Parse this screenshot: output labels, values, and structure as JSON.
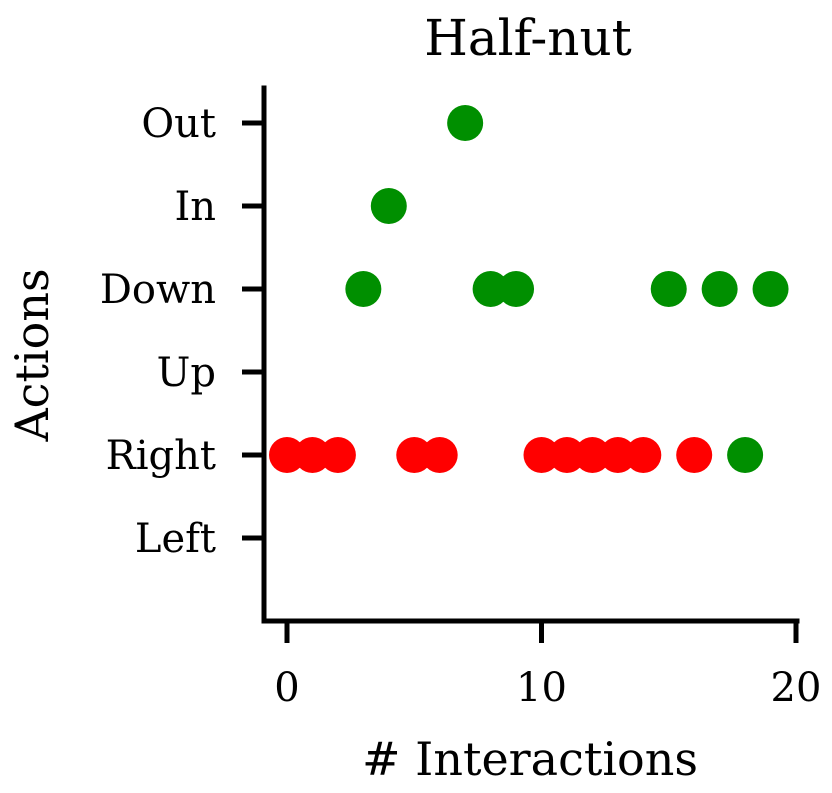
{
  "chart_data": {
    "type": "scatter",
    "title": "Half-nut",
    "xlabel": "# Interactions",
    "ylabel": "Actions",
    "xlim": [
      -1,
      20
    ],
    "xticks": [
      0,
      10,
      20
    ],
    "xtick_labels": [
      "0",
      "10",
      "20"
    ],
    "y_categories": [
      "Left",
      "Right",
      "Up",
      "Down",
      "In",
      "Out"
    ],
    "grid": false,
    "colors": {
      "red": "#ff0000",
      "green": "#008f00",
      "axis": "#000000"
    },
    "points": [
      {
        "x": 0,
        "y": "Right",
        "color": "red"
      },
      {
        "x": 1,
        "y": "Right",
        "color": "red"
      },
      {
        "x": 2,
        "y": "Right",
        "color": "red"
      },
      {
        "x": 3,
        "y": "Down",
        "color": "green"
      },
      {
        "x": 4,
        "y": "In",
        "color": "green"
      },
      {
        "x": 5,
        "y": "Right",
        "color": "red"
      },
      {
        "x": 6,
        "y": "Right",
        "color": "red"
      },
      {
        "x": 7,
        "y": "Out",
        "color": "green"
      },
      {
        "x": 8,
        "y": "Down",
        "color": "green"
      },
      {
        "x": 9,
        "y": "Down",
        "color": "green"
      },
      {
        "x": 10,
        "y": "Right",
        "color": "red"
      },
      {
        "x": 11,
        "y": "Right",
        "color": "red"
      },
      {
        "x": 12,
        "y": "Right",
        "color": "red"
      },
      {
        "x": 13,
        "y": "Right",
        "color": "red"
      },
      {
        "x": 14,
        "y": "Right",
        "color": "red"
      },
      {
        "x": 15,
        "y": "Down",
        "color": "green"
      },
      {
        "x": 16,
        "y": "Right",
        "color": "red"
      },
      {
        "x": 17,
        "y": "Down",
        "color": "green"
      },
      {
        "x": 18,
        "y": "Right",
        "color": "green"
      },
      {
        "x": 19,
        "y": "Down",
        "color": "green"
      }
    ]
  }
}
